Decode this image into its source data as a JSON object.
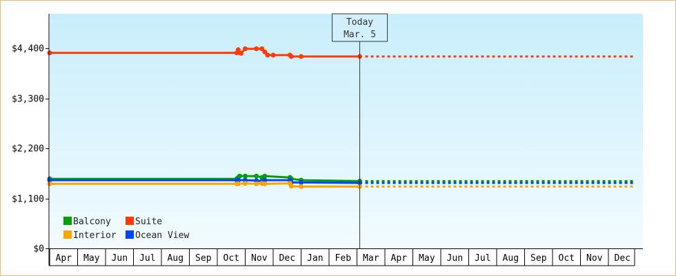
{
  "chart_data": {
    "type": "line",
    "title": "",
    "xlabel": "",
    "ylabel": "",
    "y_ticks": [
      "$0",
      "$1,100",
      "$2,200",
      "$3,300",
      "$4,400"
    ],
    "ylim": [
      0,
      4400
    ],
    "months": [
      "Apr",
      "May",
      "Jun",
      "Jul",
      "Aug",
      "Sep",
      "Oct",
      "Nov",
      "Dec",
      "Jan",
      "Feb",
      "Mar",
      "Apr",
      "May",
      "Jun",
      "Jul",
      "Aug",
      "Sep",
      "Oct",
      "Nov",
      "Dec"
    ],
    "x_range": [
      0,
      21
    ],
    "today": {
      "line1": "Today",
      "line2": "Mar. 5",
      "x": 11.1
    },
    "grid": false,
    "legend_position": "bottom-left",
    "series": [
      {
        "name": "Suite",
        "color": "#ff3b0a",
        "points": [
          [
            0,
            4300
          ],
          [
            6.7,
            4300
          ],
          [
            6.75,
            4370
          ],
          [
            6.85,
            4290
          ],
          [
            7.0,
            4390
          ],
          [
            7.4,
            4390
          ],
          [
            7.6,
            4390
          ],
          [
            7.7,
            4320
          ],
          [
            7.8,
            4250
          ],
          [
            8.0,
            4250
          ],
          [
            8.6,
            4250
          ],
          [
            8.65,
            4220
          ],
          [
            9.0,
            4220
          ],
          [
            11.1,
            4220
          ]
        ],
        "forecast": [
          [
            11.1,
            4220
          ],
          [
            21,
            4220
          ]
        ]
      },
      {
        "name": "Balcony",
        "color": "#00a000",
        "points": [
          [
            0,
            1530
          ],
          [
            6.7,
            1530
          ],
          [
            6.75,
            1560
          ],
          [
            6.8,
            1590
          ],
          [
            7.0,
            1590
          ],
          [
            7.4,
            1590
          ],
          [
            7.6,
            1560
          ],
          [
            7.7,
            1590
          ],
          [
            8.6,
            1560
          ],
          [
            8.65,
            1530
          ],
          [
            9.0,
            1500
          ],
          [
            11.1,
            1480
          ]
        ],
        "forecast": [
          [
            11.1,
            1480
          ],
          [
            21,
            1480
          ]
        ]
      },
      {
        "name": "Ocean View",
        "color": "#0044ff",
        "points": [
          [
            0,
            1500
          ],
          [
            6.7,
            1500
          ],
          [
            6.75,
            1500
          ],
          [
            7.0,
            1500
          ],
          [
            7.4,
            1490
          ],
          [
            7.6,
            1480
          ],
          [
            7.7,
            1500
          ],
          [
            8.6,
            1500
          ],
          [
            8.65,
            1450
          ],
          [
            9.0,
            1450
          ],
          [
            11.1,
            1440
          ]
        ],
        "forecast": [
          [
            11.1,
            1440
          ],
          [
            21,
            1440
          ]
        ]
      },
      {
        "name": "Interior",
        "color": "#ffa500",
        "points": [
          [
            0,
            1420
          ],
          [
            6.7,
            1420
          ],
          [
            6.75,
            1420
          ],
          [
            7.0,
            1430
          ],
          [
            7.4,
            1420
          ],
          [
            7.6,
            1430
          ],
          [
            7.7,
            1420
          ],
          [
            8.6,
            1430
          ],
          [
            8.65,
            1370
          ],
          [
            9.0,
            1360
          ],
          [
            11.1,
            1360
          ]
        ],
        "forecast": [
          [
            11.1,
            1360
          ],
          [
            21,
            1360
          ]
        ]
      }
    ],
    "legend": [
      {
        "name": "Balcony",
        "color": "#00a000"
      },
      {
        "name": "Suite",
        "color": "#ff3b0a"
      },
      {
        "name": "Interior",
        "color": "#ffa500"
      },
      {
        "name": "Ocean View",
        "color": "#0044ff"
      }
    ]
  }
}
